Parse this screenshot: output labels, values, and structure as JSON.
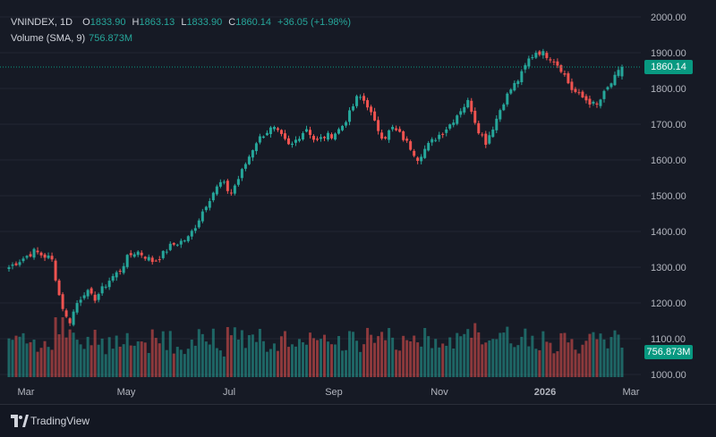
{
  "legend": {
    "symbol": "VNINDEX, 1D",
    "open_label": "O",
    "open": "1833.90",
    "high_label": "H",
    "high": "1863.13",
    "low_label": "L",
    "low": "1833.90",
    "close_label": "C",
    "close": "1860.14",
    "change": "+36.05 (+1.98%)",
    "volume_label": "Volume (SMA, 9)",
    "volume_value": "756.873M"
  },
  "price_tag": "1860.14",
  "volume_tag": "756.873M",
  "footer": {
    "brand": "TradingView"
  },
  "colors": {
    "up": "#26a69a",
    "down": "#ef5350",
    "background": "#161a25",
    "grid": "#232633",
    "tag": "#089981"
  },
  "chart_data": {
    "type": "candlestick",
    "title": "",
    "y_axis": {
      "ticks": [
        1000,
        1100,
        1200,
        1300,
        1400,
        1500,
        1600,
        1700,
        1800,
        1900,
        2000
      ],
      "range": [
        1000,
        2000
      ],
      "position": "right"
    },
    "x_axis": {
      "labels": [
        "Mar",
        "May",
        "Jul",
        "Sep",
        "Nov",
        "2026",
        "Mar"
      ]
    },
    "last_price": 1860.14,
    "series": [
      {
        "name": "VNINDEX",
        "close_path": [
          [
            "Mar",
            1300
          ],
          [
            "Mar",
            1315
          ],
          [
            "Mar",
            1330
          ],
          [
            "Mar",
            1345
          ],
          [
            "Mar",
            1332
          ],
          [
            "Mar",
            1325
          ],
          [
            "Apr",
            1210
          ],
          [
            "Apr",
            1140
          ],
          [
            "Apr",
            1200
          ],
          [
            "Apr",
            1235
          ],
          [
            "May",
            1210
          ],
          [
            "May",
            1240
          ],
          [
            "May",
            1270
          ],
          [
            "May",
            1290
          ],
          [
            "May",
            1330
          ],
          [
            "May",
            1345
          ],
          [
            "Jun",
            1330
          ],
          [
            "Jun",
            1315
          ],
          [
            "Jun",
            1335
          ],
          [
            "Jun",
            1360
          ],
          [
            "Jun",
            1370
          ],
          [
            "Jul",
            1380
          ],
          [
            "Jul",
            1420
          ],
          [
            "Jul",
            1470
          ],
          [
            "Jul",
            1510
          ],
          [
            "Jul",
            1540
          ],
          [
            "Jul",
            1505
          ],
          [
            "Jul",
            1550
          ],
          [
            "Aug",
            1600
          ],
          [
            "Aug",
            1650
          ],
          [
            "Aug",
            1675
          ],
          [
            "Aug",
            1690
          ],
          [
            "Aug",
            1665
          ],
          [
            "Aug",
            1635
          ],
          [
            "Sep",
            1665
          ],
          [
            "Sep",
            1690
          ],
          [
            "Sep",
            1650
          ],
          [
            "Sep",
            1665
          ],
          [
            "Sep",
            1670
          ],
          [
            "Sep",
            1690
          ],
          [
            "Oct",
            1730
          ],
          [
            "Oct",
            1780
          ],
          [
            "Oct",
            1760
          ],
          [
            "Oct",
            1700
          ],
          [
            "Oct",
            1660
          ],
          [
            "Oct",
            1690
          ],
          [
            "Oct",
            1670
          ],
          [
            "Nov",
            1640
          ],
          [
            "Nov",
            1605
          ],
          [
            "Nov",
            1635
          ],
          [
            "Nov",
            1660
          ],
          [
            "Nov",
            1680
          ],
          [
            "Dec",
            1705
          ],
          [
            "Dec",
            1740
          ],
          [
            "Dec",
            1765
          ],
          [
            "Dec",
            1690
          ],
          [
            "Dec",
            1650
          ],
          [
            "Dec",
            1700
          ],
          [
            "Dec",
            1760
          ],
          [
            "Dec",
            1800
          ],
          [
            "Dec",
            1830
          ],
          [
            "Jan",
            1880
          ],
          [
            "Jan",
            1905
          ],
          [
            "Jan",
            1895
          ],
          [
            "Jan",
            1880
          ],
          [
            "Jan",
            1850
          ],
          [
            "Feb",
            1800
          ],
          [
            "Feb",
            1780
          ],
          [
            "Feb",
            1765
          ],
          [
            "Feb",
            1750
          ],
          [
            "Feb",
            1790
          ],
          [
            "Feb",
            1824
          ],
          [
            "Feb",
            1860.14
          ]
        ],
        "approximate": true
      }
    ],
    "volume_series": {
      "name": "Volume (SMA, 9)",
      "last_value": "756.873M"
    }
  }
}
